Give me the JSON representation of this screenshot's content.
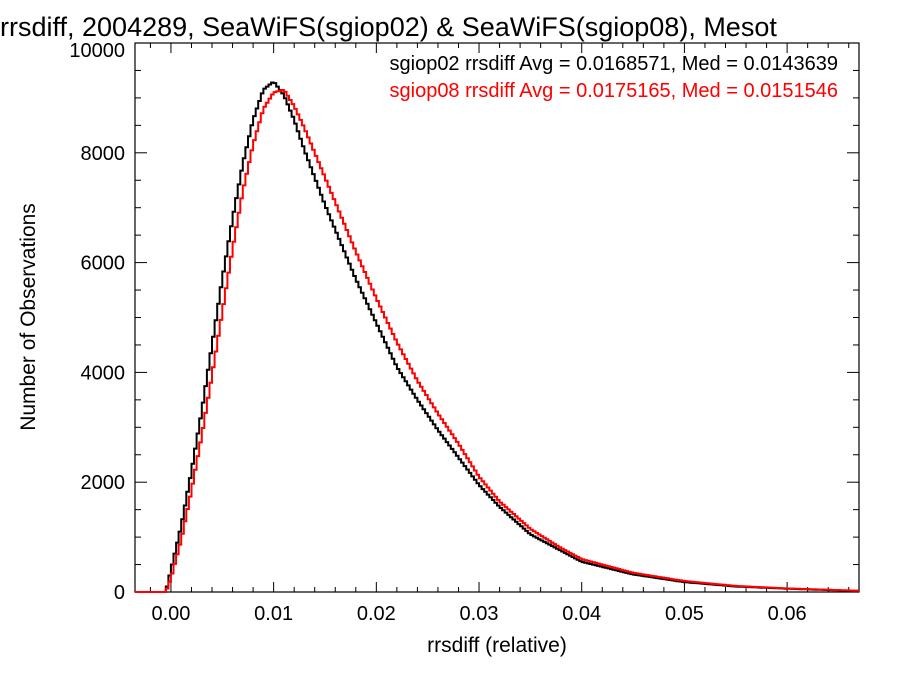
{
  "chart_data": {
    "type": "line",
    "step": true,
    "title": "rrsdiff, 2004289, SeaWiFS(sgiop02) & SeaWiFS(sgiop08), Mesot",
    "xlabel": "rrsdiff (relative)",
    "ylabel": "Number of Observations",
    "xlim": [
      -0.0035,
      0.067
    ],
    "ylim": [
      0,
      10000
    ],
    "x_ticks": [
      "0.00",
      "0.01",
      "0.02",
      "0.03",
      "0.04",
      "0.05",
      "0.06"
    ],
    "y_ticks": [
      "0",
      "2000",
      "4000",
      "6000",
      "8000",
      "10000"
    ],
    "legend_position": "top-right",
    "annotations": [
      {
        "text": "sgiop02 rrsdiff Avg = 0.0168571, Med = 0.0143639",
        "color": "#000000"
      },
      {
        "text": "sgiop08 rrsdiff Avg = 0.0175165, Med = 0.0151546",
        "color": "#ff0000"
      }
    ],
    "series": [
      {
        "color": "#000000",
        "x": [
          -0.0035,
          -0.0005,
          0.0,
          0.001,
          0.002,
          0.003,
          0.004,
          0.005,
          0.006,
          0.007,
          0.008,
          0.009,
          0.01,
          0.011,
          0.012,
          0.013,
          0.014,
          0.015,
          0.016,
          0.018,
          0.02,
          0.022,
          0.024,
          0.026,
          0.028,
          0.03,
          0.032,
          0.035,
          0.038,
          0.04,
          0.045,
          0.05,
          0.055,
          0.06,
          0.065,
          0.067
        ],
        "y": [
          0,
          0,
          400,
          1200,
          2200,
          3300,
          4500,
          5700,
          6800,
          7800,
          8600,
          9150,
          9300,
          9050,
          8600,
          8050,
          7550,
          7050,
          6600,
          5700,
          4900,
          4100,
          3500,
          2950,
          2450,
          1950,
          1550,
          1050,
          750,
          550,
          320,
          180,
          100,
          60,
          30,
          20
        ]
      },
      {
        "color": "#ff0000",
        "x": [
          -0.0035,
          -0.0005,
          0.0,
          0.001,
          0.002,
          0.003,
          0.004,
          0.005,
          0.006,
          0.007,
          0.008,
          0.009,
          0.01,
          0.011,
          0.012,
          0.013,
          0.014,
          0.015,
          0.016,
          0.018,
          0.02,
          0.022,
          0.024,
          0.026,
          0.028,
          0.03,
          0.032,
          0.035,
          0.038,
          0.04,
          0.045,
          0.05,
          0.055,
          0.06,
          0.065,
          0.067
        ],
        "y": [
          0,
          0,
          250,
          950,
          1850,
          2850,
          3950,
          5100,
          6250,
          7300,
          8150,
          8800,
          9100,
          9150,
          8850,
          8450,
          8000,
          7550,
          7100,
          6200,
          5350,
          4550,
          3850,
          3250,
          2700,
          2100,
          1650,
          1150,
          800,
          600,
          350,
          200,
          110,
          65,
          35,
          22
        ]
      }
    ]
  }
}
